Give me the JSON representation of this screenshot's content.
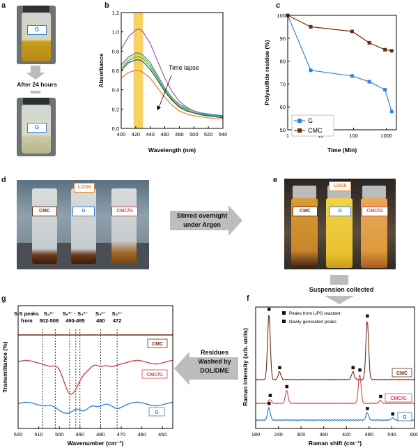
{
  "panels": {
    "a": {
      "label": "a",
      "vial_tag": "G",
      "arrow_text": "After 24 hours"
    },
    "b": {
      "label": "b",
      "annotation": "Time lapse"
    },
    "c": {
      "label": "c"
    },
    "d": {
      "label": "d",
      "vial_tags": [
        "CMC",
        "G",
        "CMC/G"
      ],
      "header_tag": "Li2S6"
    },
    "e": {
      "label": "e",
      "vial_tags": [
        "CMC",
        "G",
        "CMC/G"
      ],
      "header_tag": "Li2S6"
    },
    "f": {
      "label": "f"
    },
    "g": {
      "label": "g"
    }
  },
  "arrows": {
    "d_to_e": [
      "Stirred overnight",
      "under Argon"
    ],
    "e_to_f": "Suspension collected",
    "f_to_g": [
      "Residues",
      "Washed by",
      "DOL/DME"
    ]
  },
  "colors": {
    "highlight": "#f7c948",
    "G": "#2e86de",
    "CMC": "#6b2d12",
    "CMCG": "#d6454a",
    "G_raman": "#1f77b4"
  },
  "chart_data": [
    {
      "id": "b",
      "type": "line",
      "xlabel": "Wavelength (nm)",
      "ylabel": "Absorbance",
      "xlim": [
        400,
        540
      ],
      "ylim": [
        0,
        1.2
      ],
      "xticks": [
        400,
        420,
        440,
        460,
        480,
        500,
        520,
        540
      ],
      "yticks": [
        0.0,
        0.2,
        0.4,
        0.6,
        0.8,
        1.0,
        1.2
      ],
      "highlight_band": [
        417,
        430
      ],
      "x": [
        400,
        410,
        420,
        425,
        430,
        440,
        450,
        460,
        470,
        480,
        490,
        500,
        510,
        520,
        530,
        540
      ],
      "series": [
        {
          "color": "#9b59b6",
          "values": [
            0.82,
            0.95,
            1.02,
            1.03,
            1.0,
            0.88,
            0.7,
            0.52,
            0.38,
            0.28,
            0.22,
            0.18,
            0.16,
            0.15,
            0.14,
            0.13
          ]
        },
        {
          "color": "#2e86de",
          "values": [
            0.66,
            0.74,
            0.78,
            0.78,
            0.76,
            0.68,
            0.55,
            0.42,
            0.32,
            0.25,
            0.21,
            0.18,
            0.16,
            0.15,
            0.14,
            0.13
          ]
        },
        {
          "color": "#f1c40f",
          "values": [
            0.64,
            0.72,
            0.76,
            0.76,
            0.74,
            0.66,
            0.53,
            0.41,
            0.31,
            0.24,
            0.2,
            0.17,
            0.15,
            0.14,
            0.13,
            0.12
          ]
        },
        {
          "color": "#27ae60",
          "values": [
            0.62,
            0.7,
            0.74,
            0.74,
            0.72,
            0.64,
            0.52,
            0.4,
            0.3,
            0.23,
            0.19,
            0.16,
            0.15,
            0.14,
            0.13,
            0.12
          ]
        },
        {
          "color": "#1a5276",
          "values": [
            0.6,
            0.68,
            0.71,
            0.71,
            0.69,
            0.61,
            0.5,
            0.38,
            0.29,
            0.22,
            0.18,
            0.16,
            0.14,
            0.13,
            0.12,
            0.11
          ]
        },
        {
          "color": "#e67e22",
          "values": [
            0.52,
            0.58,
            0.6,
            0.6,
            0.58,
            0.52,
            0.42,
            0.32,
            0.24,
            0.18,
            0.15,
            0.13,
            0.12,
            0.11,
            0.1,
            0.1
          ]
        }
      ]
    },
    {
      "id": "c",
      "type": "line",
      "xlabel": "Time (Min)",
      "ylabel": "Polysulfide residue (%)",
      "xscale": "log",
      "xlim": [
        1,
        2000
      ],
      "ylim": [
        50,
        100
      ],
      "xticks": [
        1,
        10,
        100,
        1000
      ],
      "yticks": [
        50,
        60,
        70,
        80,
        90,
        100
      ],
      "legend_position": "bottom-left",
      "series": [
        {
          "name": "G",
          "color": "#2e86de",
          "marker": "square",
          "x": [
            1,
            5,
            90,
            300,
            900,
            1440
          ],
          "values": [
            100,
            76,
            73.5,
            71,
            67.5,
            58
          ]
        },
        {
          "name": "CMC",
          "color": "#6b2d12",
          "marker": "square",
          "x": [
            1,
            5,
            90,
            300,
            900,
            1440
          ],
          "values": [
            100,
            95,
            93,
            88,
            85,
            84.5
          ]
        }
      ]
    },
    {
      "id": "f",
      "type": "line",
      "xlabel": "Raman shift (cm⁻¹)",
      "ylabel": "Raman intensity (arb. units)",
      "xlim": [
        180,
        600
      ],
      "xticks": [
        180,
        240,
        300,
        360,
        420,
        480,
        540,
        600
      ],
      "legend": [
        "Peaks from LiPS reactant",
        "Newly generated peaks"
      ],
      "series": [
        {
          "name": "CMC",
          "color": "#6b2d12",
          "peaks": [
            [
              215,
              1.0
            ],
            [
              243,
              0.12
            ],
            [
              437,
              0.12
            ],
            [
              475,
              0.9
            ]
          ]
        },
        {
          "name": "CMC/G",
          "color": "#d6454a",
          "peaks": [
            [
              218,
              0.08
            ],
            [
              262,
              0.26
            ],
            [
              455,
              0.6
            ],
            [
              510,
              0.06
            ]
          ]
        },
        {
          "name": "G",
          "color": "#1f77b4",
          "peaks": [
            [
              215,
              0.3
            ],
            [
              475,
              0.18
            ],
            [
              542,
              0.05
            ]
          ]
        }
      ]
    },
    {
      "id": "g",
      "type": "line",
      "xlabel": "Wavenumber (cm⁻¹)",
      "ylabel": "Transmittance (%)",
      "xlim": [
        520,
        445
      ],
      "xticks": [
        520,
        510,
        500,
        490,
        480,
        470,
        460,
        450
      ],
      "peak_header": "S-S peaks from",
      "peak_groups": [
        {
          "species": "S₄²⁻",
          "range": "502-508",
          "lines": [
            508,
            502
          ]
        },
        {
          "species": "S₆²⁻ · S₃²⁻",
          "range": "490-495",
          "lines": [
            495,
            492,
            490
          ]
        },
        {
          "species": "S₅²⁻",
          "range": "480",
          "lines": [
            480
          ]
        },
        {
          "species": "S₃²⁻",
          "range": "472",
          "lines": [
            472
          ]
        }
      ],
      "series": [
        {
          "name": "CMC",
          "color": "#6b2d12"
        },
        {
          "name": "CMC/G",
          "color": "#d6454a"
        },
        {
          "name": "G",
          "color": "#2e86de"
        }
      ]
    }
  ]
}
